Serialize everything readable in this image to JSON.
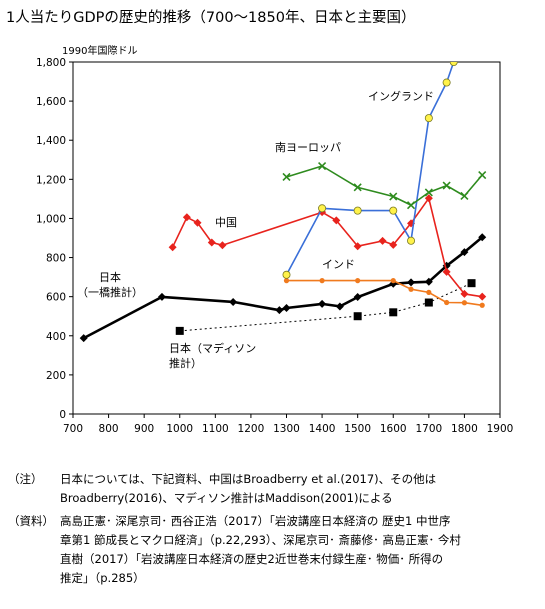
{
  "title": "1人当たりGDPの歴史的推移（700〜1850年、日本と主要国）",
  "chart_data": {
    "type": "line",
    "title": "1人当たりGDPの歴史的推移（700〜1850年、日本と主要国）",
    "ylabel": "1990年国際ドル",
    "xlabel": "",
    "xlim": [
      700,
      1900
    ],
    "ylim": [
      0,
      1800
    ],
    "xticks": [
      700,
      800,
      900,
      1000,
      1100,
      1200,
      1300,
      1400,
      1500,
      1600,
      1700,
      1800,
      1900
    ],
    "yticks": [
      0,
      200,
      400,
      600,
      800,
      1000,
      1200,
      1400,
      1600,
      1800
    ],
    "ytick_labels": [
      "0",
      "200",
      "400",
      "600",
      "800",
      "1,000",
      "1,200",
      "1,400",
      "1,600",
      "1,800"
    ],
    "grid": false,
    "legend": "none",
    "series": [
      {
        "name": "日本（一橋推計）",
        "label_lines": [
          "日本",
          "（一橋推計）"
        ],
        "color": "#000000",
        "marker": "diamond",
        "line": "solid",
        "points": [
          [
            730,
            388
          ],
          [
            950,
            599
          ],
          [
            1150,
            573
          ],
          [
            1280,
            531
          ],
          [
            1300,
            542
          ],
          [
            1400,
            563
          ],
          [
            1450,
            550
          ],
          [
            1500,
            598
          ],
          [
            1600,
            666
          ],
          [
            1650,
            673
          ],
          [
            1700,
            676
          ],
          [
            1750,
            758
          ],
          [
            1800,
            828
          ],
          [
            1850,
            904
          ]
        ]
      },
      {
        "name": "日本（マディソン推計）",
        "label_lines": [
          "日本（マディソン",
          "推計）"
        ],
        "color": "#000000",
        "marker": "square",
        "line": "dotted",
        "points": [
          [
            1000,
            425
          ],
          [
            1500,
            500
          ],
          [
            1600,
            520
          ],
          [
            1700,
            570
          ],
          [
            1820,
            669
          ]
        ]
      },
      {
        "name": "中国",
        "label_lines": [
          "中国"
        ],
        "color": "#e8231d",
        "marker": "diamond",
        "line": "solid",
        "points": [
          [
            980,
            853
          ],
          [
            1020,
            1006
          ],
          [
            1050,
            978
          ],
          [
            1090,
            877
          ],
          [
            1120,
            863
          ],
          [
            1400,
            1032
          ],
          [
            1440,
            990
          ],
          [
            1500,
            858
          ],
          [
            1570,
            885
          ],
          [
            1600,
            865
          ],
          [
            1650,
            975
          ],
          [
            1700,
            1103
          ],
          [
            1750,
            727
          ],
          [
            1800,
            614
          ],
          [
            1850,
            600
          ]
        ]
      },
      {
        "name": "インド",
        "label_lines": [
          "インド"
        ],
        "color": "#f07a1e",
        "marker": "dot",
        "line": "solid",
        "points": [
          [
            1300,
            682
          ],
          [
            1400,
            682
          ],
          [
            1500,
            682
          ],
          [
            1600,
            682
          ],
          [
            1650,
            638
          ],
          [
            1700,
            622
          ],
          [
            1750,
            570
          ],
          [
            1800,
            569
          ],
          [
            1850,
            556
          ]
        ]
      },
      {
        "name": "イングランド",
        "label_lines": [
          "イングランド"
        ],
        "color": "#3a6fd8",
        "marker": "circle-yellow",
        "line": "solid",
        "points": [
          [
            1300,
            712
          ],
          [
            1400,
            1052
          ],
          [
            1500,
            1040
          ],
          [
            1600,
            1040
          ],
          [
            1650,
            886
          ],
          [
            1700,
            1513
          ],
          [
            1750,
            1695
          ],
          [
            1770,
            1800
          ]
        ]
      },
      {
        "name": "南ヨーロッパ",
        "label_lines": [
          "南ヨーロッパ"
        ],
        "color": "#2e8b1e",
        "marker": "cross",
        "line": "solid",
        "points": [
          [
            1300,
            1212
          ],
          [
            1400,
            1268
          ],
          [
            1500,
            1159
          ],
          [
            1600,
            1112
          ],
          [
            1650,
            1068
          ],
          [
            1700,
            1133
          ],
          [
            1750,
            1168
          ],
          [
            1800,
            1115
          ],
          [
            1850,
            1222
          ]
        ]
      }
    ]
  },
  "notes": [
    {
      "key": "（注）",
      "lines": [
        "日本については、下記資料、中国はBroadberry et al.(2017)、その他は",
        "Broadberry(2016)、マディソン推計はMaddison(2001)による"
      ]
    },
    {
      "key": "（資料）",
      "lines": [
        "高島正憲･ 深尾京司･ 西谷正浩（2017）「岩波講座日本経済の 歴史1 中世序",
        "章第1 節成長とマクロ経済」（p.22,293）、深尾京司･ 斎藤修･ 高島正憲･ 今村",
        "直樹（2017）「岩波講座日本経済の歴史2近世巻末付録生産･ 物価･ 所得の",
        "推定」（p.285）"
      ]
    }
  ]
}
